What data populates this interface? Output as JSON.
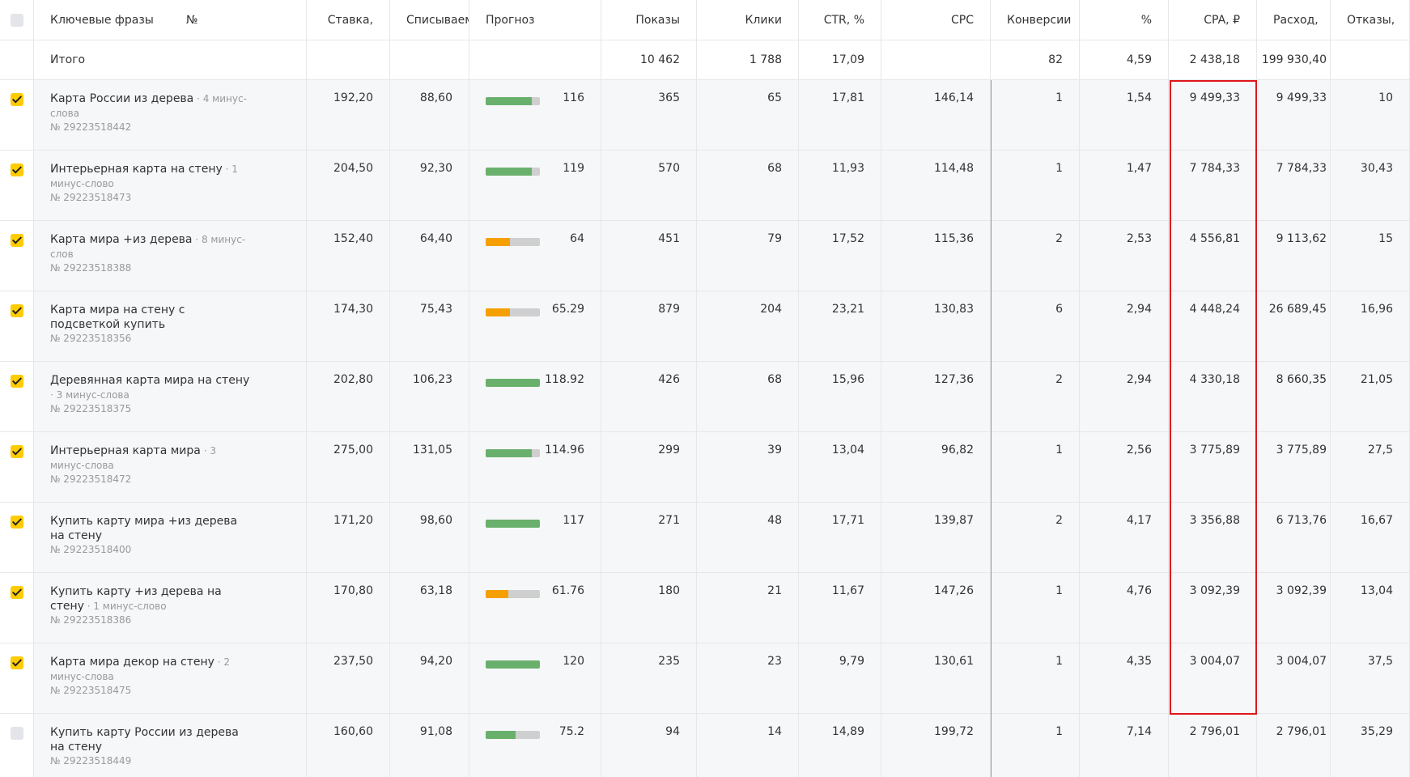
{
  "header": {
    "phrase": "Ключевые фразы",
    "number": "№",
    "bid": "Ставка, ₽",
    "charge": "Списываем",
    "forecast": "Прогноз трафика",
    "shows": "Показы",
    "clicks": "Клики",
    "ctr": "CTR, %",
    "cpc": "CPC",
    "conv": "Конверсии",
    "conv_pct": "% Конверсий",
    "cpa": "CPA, ₽",
    "cost": "Расход, ₽",
    "bounce": "Отказы, %"
  },
  "total": {
    "phrase": "Итого",
    "shows": "10 462",
    "clicks": "1 788",
    "ctr": "17,09",
    "conv": "82",
    "conv_pct": "4,59",
    "cpa": "2 438,18",
    "cost": "199 930,40"
  },
  "rows": [
    {
      "selected": true,
      "phrase": "Карта России из дерева",
      "minus": "4 минус-слова",
      "id": "№ 29223518442",
      "bid": "192,20",
      "charge": "88,60",
      "forecast": "116",
      "shows": "365",
      "clicks": "65",
      "ctr": "17,81",
      "cpc": "146,14",
      "conv": "1",
      "conv_pct": "1,54",
      "cpa": "9 499,33",
      "cost": "9 499,33",
      "bounce": "10"
    },
    {
      "selected": true,
      "phrase": "Интерьерная карта на стену",
      "minus": "1 минус-слово",
      "id": "№ 29223518473",
      "bid": "204,50",
      "charge": "92,30",
      "forecast": "119",
      "shows": "570",
      "clicks": "68",
      "ctr": "11,93",
      "cpc": "114,48",
      "conv": "1",
      "conv_pct": "1,47",
      "cpa": "7 784,33",
      "cost": "7 784,33",
      "bounce": "30,43"
    },
    {
      "selected": true,
      "phrase": "Карта мира +из дерева",
      "minus": "8 минус-слов",
      "id": "№ 29223518388",
      "bid": "152,40",
      "charge": "64,40",
      "forecast": "64",
      "shows": "451",
      "clicks": "79",
      "ctr": "17,52",
      "cpc": "115,36",
      "conv": "2",
      "conv_pct": "2,53",
      "cpa": "4 556,81",
      "cost": "9 113,62",
      "bounce": "15"
    },
    {
      "selected": true,
      "phrase": "Карта мира на стену с подсветкой купить",
      "id": "№ 29223518356",
      "bid": "174,30",
      "charge": "75,43",
      "forecast": "65.29",
      "shows": "879",
      "clicks": "204",
      "ctr": "23,21",
      "cpc": "130,83",
      "conv": "6",
      "conv_pct": "2,94",
      "cpa": "4 448,24",
      "cost": "26 689,45",
      "bounce": "16,96"
    },
    {
      "selected": true,
      "phrase": "Деревянная карта мира на стену",
      "minus": "3 минус-слова",
      "id": "№ 29223518375",
      "bid": "202,80",
      "charge": "106,23",
      "forecast": "118.92",
      "shows": "426",
      "clicks": "68",
      "ctr": "15,96",
      "cpc": "127,36",
      "conv": "2",
      "conv_pct": "2,94",
      "cpa": "4 330,18",
      "cost": "8 660,35",
      "bounce": "21,05"
    },
    {
      "selected": true,
      "phrase": "Интерьерная карта мира",
      "minus": "3 минус-слова",
      "id": "№ 29223518472",
      "bid": "275,00",
      "charge": "131,05",
      "forecast": "114.96",
      "shows": "299",
      "clicks": "39",
      "ctr": "13,04",
      "cpc": "96,82",
      "conv": "1",
      "conv_pct": "2,56",
      "cpa": "3 775,89",
      "cost": "3 775,89",
      "bounce": "27,5"
    },
    {
      "selected": true,
      "phrase": "Купить карту мира +из дерева на стену",
      "id": "№ 29223518400",
      "bid": "171,20",
      "charge": "98,60",
      "forecast": "117",
      "shows": "271",
      "clicks": "48",
      "ctr": "17,71",
      "cpc": "139,87",
      "conv": "2",
      "conv_pct": "4,17",
      "cpa": "3 356,88",
      "cost": "6 713,76",
      "bounce": "16,67"
    },
    {
      "selected": true,
      "phrase": "Купить карту +из дерева на стену",
      "minus": "1 минус-слово",
      "id": "№ 29223518386",
      "bid": "170,80",
      "charge": "63,18",
      "forecast": "61.76",
      "shows": "180",
      "clicks": "21",
      "ctr": "11,67",
      "cpc": "147,26",
      "conv": "1",
      "conv_pct": "4,76",
      "cpa": "3 092,39",
      "cost": "3 092,39",
      "bounce": "13,04"
    },
    {
      "selected": true,
      "phrase": "Карта мира декор на стену",
      "minus": "2 минус-слова",
      "id": "№ 29223518475",
      "bid": "237,50",
      "charge": "94,20",
      "forecast": "120",
      "shows": "235",
      "clicks": "23",
      "ctr": "9,79",
      "cpc": "130,61",
      "conv": "1",
      "conv_pct": "4,35",
      "cpa": "3 004,07",
      "cost": "3 004,07",
      "bounce": "37,5"
    },
    {
      "selected": false,
      "phrase": "Купить карту России из дерева на стену",
      "id": "№ 29223518449",
      "bid": "160,60",
      "charge": "91,08",
      "forecast": "75.2",
      "shows": "94",
      "clicks": "14",
      "ctr": "14,89",
      "cpc": "199,72",
      "conv": "1",
      "conv_pct": "7,14",
      "cpa": "2 796,01",
      "cost": "2 796,01",
      "bounce": "35,29"
    }
  ]
}
